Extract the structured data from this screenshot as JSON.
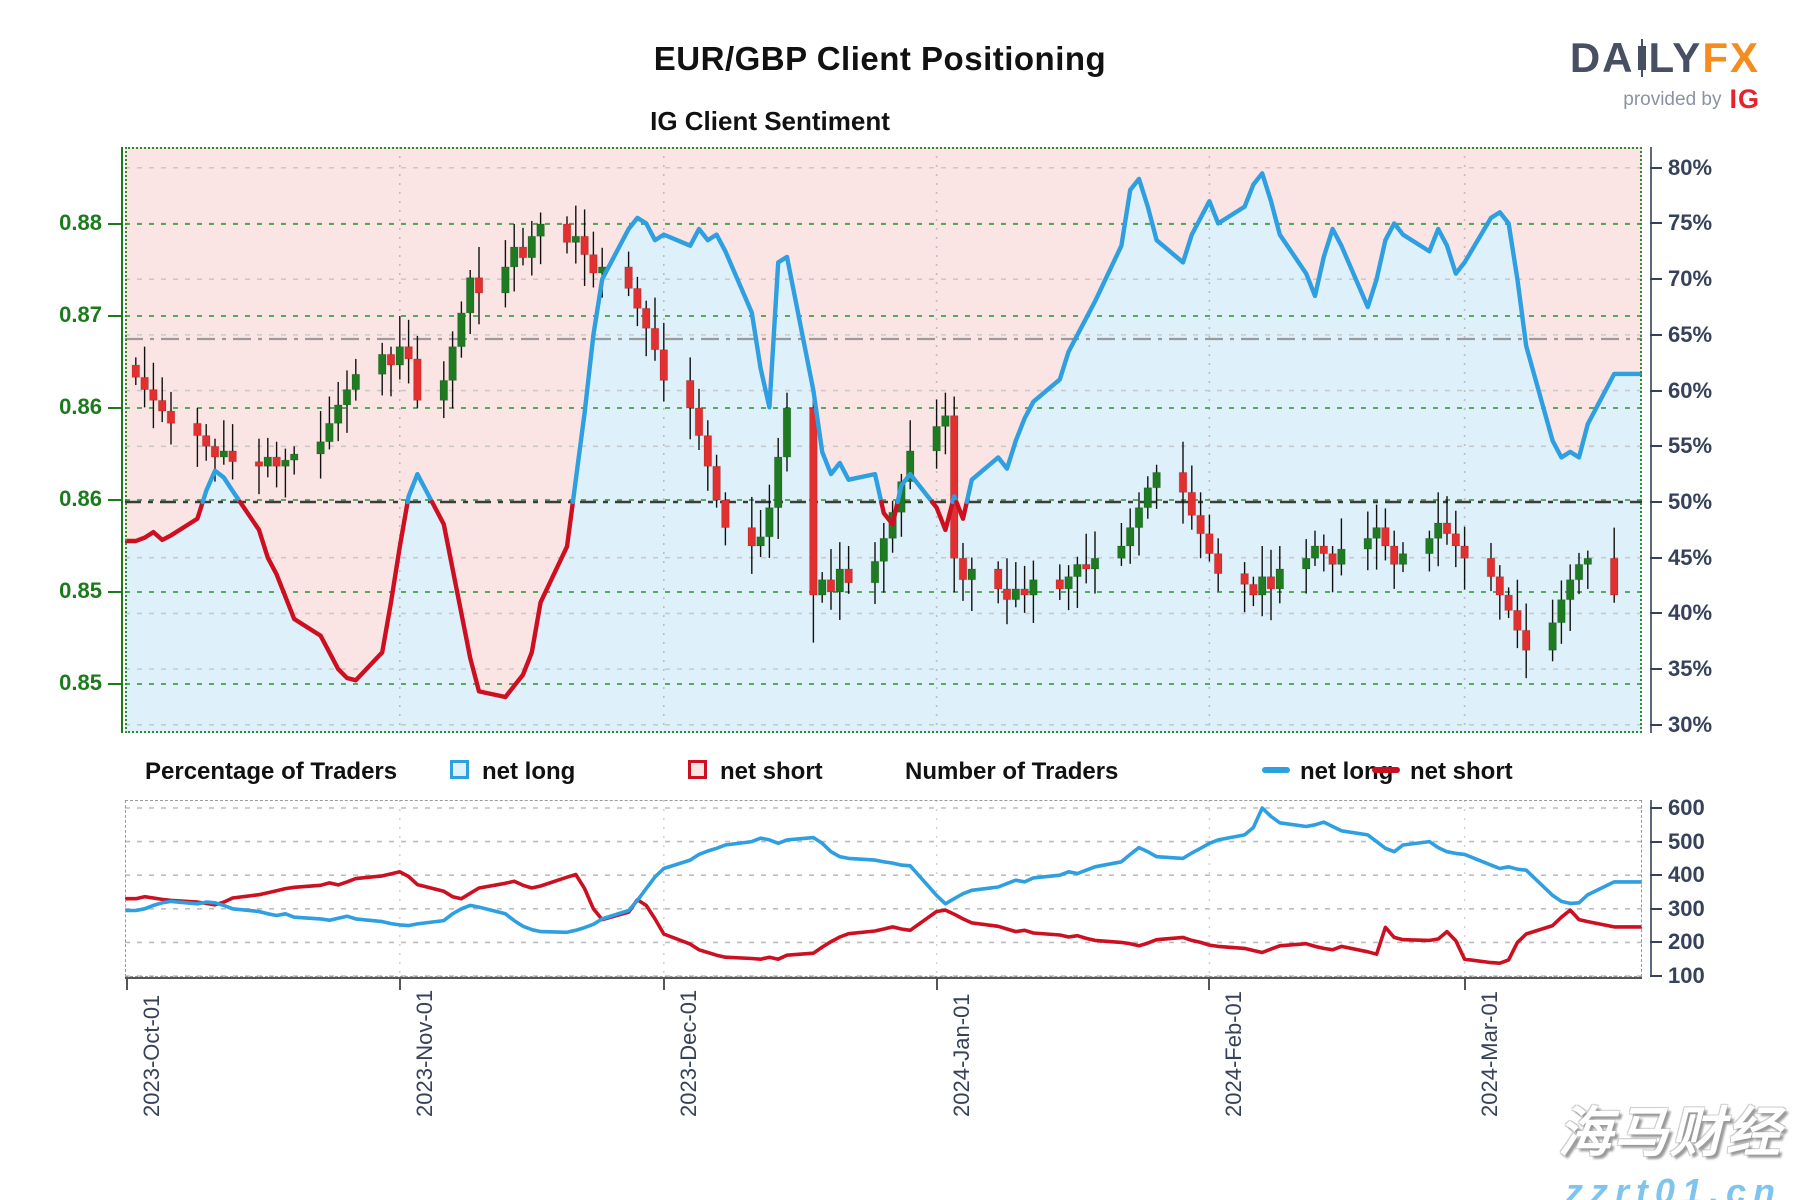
{
  "header": {
    "title": "EUR/GBP Client Positioning",
    "subtitle": "IG Client Sentiment",
    "logo": {
      "part1": "DA",
      "part2": "LY",
      "part3": "FX",
      "provided_by": "provided by",
      "provider": "IG"
    }
  },
  "legend": {
    "percentage_label": "Percentage of Traders",
    "pct_net_long": "net long",
    "pct_net_short": "net short",
    "number_label": "Number of Traders",
    "num_net_long": "net long",
    "num_net_short": "net short"
  },
  "watermark": {
    "line1": "海马财经",
    "line2": "zzrt01.cn"
  },
  "colors": {
    "candle_up": "#1e7b22",
    "candle_down": "#e23030",
    "wick": "#111111",
    "sentiment_long": "#2e9fe0",
    "sentiment_short": "#cc1022",
    "bg_long": "#def0fa",
    "bg_short": "#fbe5e4",
    "count_long": "#2e9fe0",
    "count_short": "#cc1022",
    "grid_green": "#43a047",
    "grid_gray": "#c9c9c9",
    "axis_green": "#1c7a1c",
    "axis_navy": "#36415a",
    "fifty_line": "#3c3c3c",
    "ref_line": "#9a9a9a"
  },
  "chart_data": {
    "type": [
      "candlestick",
      "line"
    ],
    "title": "EUR/GBP Client Positioning",
    "subtitle": "IG Client Sentiment",
    "x_start": "2023-Oct-01",
    "x_end": "2024-Mar-19",
    "x_tick_labels": [
      "2023-Oct-01",
      "2023-Nov-01",
      "2023-Dec-01",
      "2024-Jan-01",
      "2024-Feb-01",
      "2024-Mar-01"
    ],
    "price_axis": {
      "side": "left",
      "tick_labels": [
        "0.88",
        "0.87",
        "0.86",
        "0.86",
        "0.85",
        "0.85"
      ],
      "tick_values": [
        0.877,
        0.871,
        0.865,
        0.859,
        0.853,
        0.847
      ]
    },
    "pct_axis": {
      "side": "right",
      "min": 30,
      "max": 80,
      "step": 5,
      "tick_labels": [
        "80%",
        "75%",
        "70%",
        "65%",
        "60%",
        "55%",
        "50%",
        "45%",
        "40%",
        "35%",
        "30%"
      ]
    },
    "count_axis": {
      "side": "right",
      "min": 100,
      "max": 600,
      "step": 100,
      "tick_labels": [
        "600",
        "500",
        "400",
        "300",
        "200",
        "100"
      ]
    },
    "reference_levels": {
      "pct_midline": 50,
      "price_ref": 0.8695
    },
    "legend_note": "sentiment line is net-long %, drawn blue above 50% and red below 50%; background pink above line (net short), light blue below line (net long)",
    "trading_days_start": "2023-10-02",
    "candles_close": [
      0.867,
      0.8662,
      0.8655,
      0.8648,
      0.864,
      0.8632,
      0.8625,
      0.8618,
      0.8622,
      0.8615,
      0.8612,
      0.8618,
      0.8612,
      0.8616,
      0.862,
      0.8628,
      0.864,
      0.8652,
      0.8662,
      0.8672,
      0.8685,
      0.8678,
      0.869,
      0.8682,
      0.8655,
      0.8668,
      0.869,
      0.8712,
      0.8735,
      0.8725,
      0.8742,
      0.8755,
      0.8748,
      0.8762,
      0.877,
      0.8758,
      0.8762,
      0.875,
      0.8738,
      0.8742,
      0.8728,
      0.8715,
      0.8702,
      0.8688,
      0.8668,
      0.865,
      0.8632,
      0.8612,
      0.859,
      0.8572,
      0.856,
      0.8566,
      0.8585,
      0.8618,
      0.865,
      0.8528,
      0.8538,
      0.853,
      0.8545,
      0.8536,
      0.855,
      0.8565,
      0.8582,
      0.8602,
      0.8622,
      0.8638,
      0.8645,
      0.8552,
      0.8538,
      0.8545,
      0.8532,
      0.8525,
      0.8532,
      0.8528,
      0.8538,
      0.8532,
      0.854,
      0.8548,
      0.8545,
      0.8552,
      0.856,
      0.8572,
      0.8585,
      0.8598,
      0.8608,
      0.8595,
      0.858,
      0.8568,
      0.8555,
      0.8542,
      0.8535,
      0.8528,
      0.854,
      0.8532,
      0.8545,
      0.8552,
      0.856,
      0.8555,
      0.8548,
      0.8558,
      0.8565,
      0.8572,
      0.856,
      0.8548,
      0.8555,
      0.8565,
      0.8575,
      0.8568,
      0.856,
      0.8552,
      0.854,
      0.8528,
      0.8518,
      0.8505,
      0.8492,
      0.851,
      0.8525,
      0.8538,
      0.8548,
      0.8552,
      0.8528
    ],
    "sentiment_net_long_pct": [
      46.5,
      46.8,
      47.3,
      46.6,
      47.0,
      48.5,
      51.0,
      52.8,
      52.2,
      51.0,
      47.5,
      45.0,
      43.5,
      41.5,
      39.5,
      38.0,
      36.5,
      35.0,
      34.2,
      34.0,
      36.5,
      41.0,
      46.0,
      50.5,
      52.5,
      48.0,
      44.0,
      40.0,
      36.0,
      33.0,
      32.5,
      33.5,
      34.5,
      36.5,
      41.0,
      46.0,
      52.0,
      58.0,
      65.0,
      70.0,
      74.5,
      75.5,
      75.0,
      73.5,
      74.0,
      73.0,
      74.5,
      73.5,
      74.0,
      72.5,
      67.0,
      62.0,
      58.5,
      71.5,
      72.0,
      60.0,
      54.5,
      52.5,
      53.5,
      52.0,
      52.5,
      49.0,
      48.0,
      51.5,
      52.5,
      49.5,
      47.5,
      50.5,
      48.5,
      52.0,
      54.0,
      53.0,
      55.5,
      57.5,
      59.0,
      61.0,
      63.5,
      65.0,
      66.5,
      68.0,
      73.0,
      78.0,
      79.0,
      76.5,
      73.5,
      71.5,
      74.0,
      75.5,
      77.0,
      75.0,
      76.5,
      78.5,
      79.5,
      77.0,
      74.0,
      70.5,
      68.5,
      72.0,
      74.5,
      73.0,
      67.5,
      70.0,
      73.5,
      75.0,
      74.0,
      72.5,
      74.5,
      73.0,
      70.5,
      71.5,
      75.5,
      76.0,
      75.0,
      70.0,
      64.0,
      55.5,
      54.0,
      54.5,
      54.0,
      57.0,
      61.5
    ],
    "traders_net_long": [
      295,
      300,
      310,
      318,
      322,
      315,
      320,
      318,
      310,
      300,
      292,
      285,
      280,
      285,
      275,
      270,
      266,
      272,
      278,
      270,
      262,
      256,
      252,
      250,
      255,
      265,
      285,
      300,
      310,
      305,
      285,
      265,
      248,
      238,
      232,
      230,
      236,
      244,
      254,
      270,
      295,
      325,
      360,
      395,
      420,
      445,
      462,
      472,
      480,
      490,
      500,
      510,
      505,
      495,
      505,
      512,
      495,
      470,
      455,
      450,
      445,
      440,
      436,
      430,
      428,
      340,
      315,
      330,
      345,
      355,
      365,
      375,
      385,
      380,
      392,
      400,
      410,
      405,
      415,
      425,
      440,
      462,
      482,
      470,
      455,
      450,
      466,
      480,
      495,
      505,
      520,
      542,
      600,
      575,
      556,
      545,
      550,
      558,
      545,
      532,
      520,
      500,
      480,
      470,
      490,
      500,
      482,
      470,
      465,
      462,
      430,
      420,
      425,
      418,
      415,
      340,
      322,
      316,
      318,
      342,
      380
    ],
    "traders_net_short": [
      330,
      336,
      332,
      328,
      325,
      320,
      316,
      312,
      320,
      332,
      342,
      348,
      354,
      360,
      364,
      370,
      377,
      371,
      380,
      390,
      398,
      404,
      410,
      396,
      372,
      352,
      336,
      330,
      346,
      362,
      376,
      382,
      370,
      362,
      368,
      394,
      402,
      360,
      300,
      268,
      290,
      327,
      310,
      270,
      225,
      195,
      178,
      170,
      162,
      156,
      152,
      150,
      156,
      150,
      162,
      168,
      186,
      202,
      216,
      226,
      234,
      240,
      246,
      240,
      236,
      292,
      296,
      284,
      270,
      258,
      248,
      240,
      232,
      236,
      228,
      222,
      216,
      220,
      212,
      206,
      200,
      196,
      190,
      198,
      208,
      215,
      206,
      200,
      192,
      188,
      182,
      176,
      170,
      180,
      190,
      196,
      188,
      182,
      178,
      188,
      172,
      165,
      245,
      215,
      208,
      206,
      210,
      232,
      205,
      150,
      140,
      138,
      148,
      200,
      225,
      250,
      275,
      296,
      268,
      262,
      246
    ]
  }
}
